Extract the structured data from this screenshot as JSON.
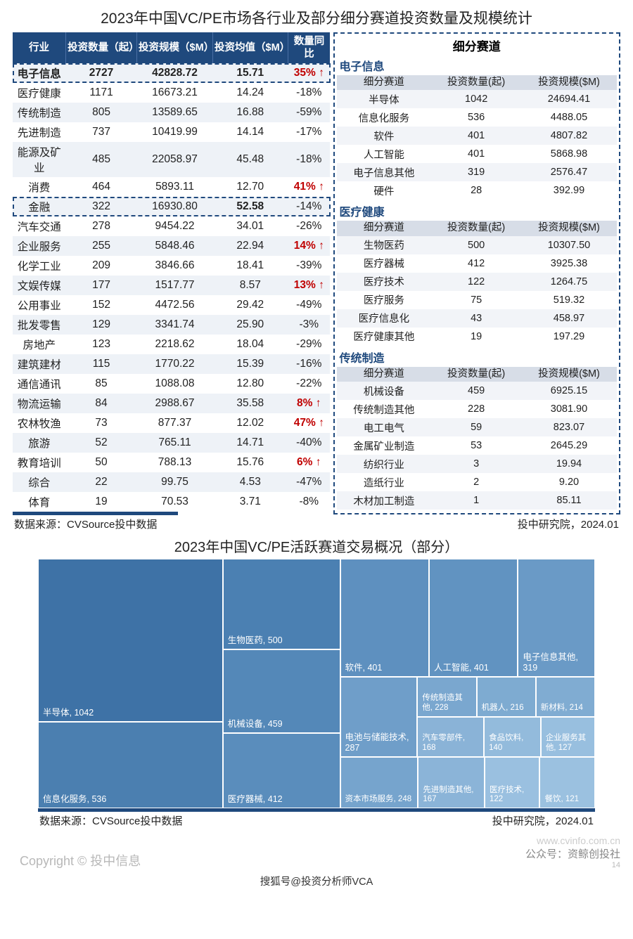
{
  "main_title": "2023年中国VC/PE市场各行业及部分细分赛道投资数量及规模统计",
  "industry_table": {
    "headers": [
      "行业",
      "投资数量（起）",
      "投资规模（$M）",
      "投资均值（$M）",
      "数量同比"
    ],
    "rows": [
      {
        "name": "电子信息",
        "count": "2727",
        "scale": "42828.72",
        "avg": "15.71",
        "yoy": "35%",
        "up": true,
        "bold": true,
        "dash": true
      },
      {
        "name": "医疗健康",
        "count": "1171",
        "scale": "16673.21",
        "avg": "14.24",
        "yoy": "-18%"
      },
      {
        "name": "传统制造",
        "count": "805",
        "scale": "13589.65",
        "avg": "16.88",
        "yoy": "-59%"
      },
      {
        "name": "先进制造",
        "count": "737",
        "scale": "10419.99",
        "avg": "14.14",
        "yoy": "-17%"
      },
      {
        "name": "能源及矿业",
        "count": "485",
        "scale": "22058.97",
        "avg": "45.48",
        "yoy": "-18%"
      },
      {
        "name": "消费",
        "count": "464",
        "scale": "5893.11",
        "avg": "12.70",
        "yoy": "41%",
        "up": true
      },
      {
        "name": "金融",
        "count": "322",
        "scale": "16930.80",
        "avg": "52.58",
        "yoy": "-14%",
        "bold_avg": true,
        "dash": true
      },
      {
        "name": "汽车交通",
        "count": "278",
        "scale": "9454.22",
        "avg": "34.01",
        "yoy": "-26%"
      },
      {
        "name": "企业服务",
        "count": "255",
        "scale": "5848.46",
        "avg": "22.94",
        "yoy": "14%",
        "up": true
      },
      {
        "name": "化学工业",
        "count": "209",
        "scale": "3846.66",
        "avg": "18.41",
        "yoy": "-39%"
      },
      {
        "name": "文娱传媒",
        "count": "177",
        "scale": "1517.77",
        "avg": "8.57",
        "yoy": "13%",
        "up": true
      },
      {
        "name": "公用事业",
        "count": "152",
        "scale": "4472.56",
        "avg": "29.42",
        "yoy": "-49%"
      },
      {
        "name": "批发零售",
        "count": "129",
        "scale": "3341.74",
        "avg": "25.90",
        "yoy": "-3%"
      },
      {
        "name": "房地产",
        "count": "123",
        "scale": "2218.62",
        "avg": "18.04",
        "yoy": "-29%"
      },
      {
        "name": "建筑建材",
        "count": "115",
        "scale": "1770.22",
        "avg": "15.39",
        "yoy": "-16%"
      },
      {
        "name": "通信通讯",
        "count": "85",
        "scale": "1088.08",
        "avg": "12.80",
        "yoy": "-22%"
      },
      {
        "name": "物流运输",
        "count": "84",
        "scale": "2988.67",
        "avg": "35.58",
        "yoy": "8%",
        "up": true
      },
      {
        "name": "农林牧渔",
        "count": "73",
        "scale": "877.37",
        "avg": "12.02",
        "yoy": "47%",
        "up": true
      },
      {
        "name": "旅游",
        "count": "52",
        "scale": "765.11",
        "avg": "14.71",
        "yoy": "-40%"
      },
      {
        "name": "教育培训",
        "count": "50",
        "scale": "788.13",
        "avg": "15.76",
        "yoy": "6%",
        "up": true
      },
      {
        "name": "综合",
        "count": "22",
        "scale": "99.75",
        "avg": "4.53",
        "yoy": "-47%"
      },
      {
        "name": "体育",
        "count": "19",
        "scale": "70.53",
        "avg": "3.71",
        "yoy": "-8%"
      }
    ]
  },
  "right_panel_title": "细分赛道",
  "sub_headers": [
    "细分赛道",
    "投资数量(起)",
    "投资规模($M)"
  ],
  "subsectors": [
    {
      "title": "电子信息",
      "rows": [
        {
          "n": "半导体",
          "c": "1042",
          "s": "24694.41"
        },
        {
          "n": "信息化服务",
          "c": "536",
          "s": "4488.05"
        },
        {
          "n": "软件",
          "c": "401",
          "s": "4807.82"
        },
        {
          "n": "人工智能",
          "c": "401",
          "s": "5868.98"
        },
        {
          "n": "电子信息其他",
          "c": "319",
          "s": "2576.47"
        },
        {
          "n": "硬件",
          "c": "28",
          "s": "392.99"
        }
      ]
    },
    {
      "title": "医疗健康",
      "rows": [
        {
          "n": "生物医药",
          "c": "500",
          "s": "10307.50"
        },
        {
          "n": "医疗器械",
          "c": "412",
          "s": "3925.38"
        },
        {
          "n": "医疗技术",
          "c": "122",
          "s": "1264.75"
        },
        {
          "n": "医疗服务",
          "c": "75",
          "s": "519.32"
        },
        {
          "n": "医疗信息化",
          "c": "43",
          "s": "458.97"
        },
        {
          "n": "医疗健康其他",
          "c": "19",
          "s": "197.29"
        }
      ]
    },
    {
      "title": "传统制造",
      "rows": [
        {
          "n": "机械设备",
          "c": "459",
          "s": "6925.15"
        },
        {
          "n": "传统制造其他",
          "c": "228",
          "s": "3081.90"
        },
        {
          "n": "电工电气",
          "c": "59",
          "s": "823.07"
        },
        {
          "n": "金属矿业制造",
          "c": "53",
          "s": "2645.29"
        },
        {
          "n": "纺织行业",
          "c": "3",
          "s": "19.94"
        },
        {
          "n": "造纸行业",
          "c": "2",
          "s": "9.20"
        },
        {
          "n": "木材加工制造",
          "c": "1",
          "s": "85.11"
        }
      ]
    }
  ],
  "source_left": "数据来源：CVSource投中数据",
  "source_right": "投中研究院，2024.01",
  "chart_title": "2023年中国VC/PE活跃赛道交易概况（部分）",
  "treemap": {
    "type": "treemap",
    "background": "#ffffff",
    "cells": [
      {
        "label": "半导体, 1042",
        "value": 1042,
        "color": "#3e72a6"
      },
      {
        "label": "信息化服务, 536",
        "value": 536,
        "color": "#4b7fb0"
      },
      {
        "label": "生物医药, 500",
        "value": 500,
        "color": "#4b80b2"
      },
      {
        "label": "机械设备, 459",
        "value": 459,
        "color": "#5488b8"
      },
      {
        "label": "医疗器械, 412",
        "value": 412,
        "color": "#5a8dbc"
      },
      {
        "label": "软件, 401",
        "value": 401,
        "color": "#5e90bf"
      },
      {
        "label": "人工智能, 401",
        "value": 401,
        "color": "#6193c1"
      },
      {
        "label": "电子信息其他, 319",
        "value": 319,
        "color": "#6a9ac6"
      },
      {
        "label": "电池与储能技术, 287",
        "value": 287,
        "color": "#6f9ec9"
      },
      {
        "label": "资本市场服务, 248",
        "value": 248,
        "color": "#76a4cd"
      },
      {
        "label": "传统制造其他, 228",
        "value": 228,
        "color": "#7aa7cf"
      },
      {
        "label": "机器人, 216",
        "value": 216,
        "color": "#7eabd1"
      },
      {
        "label": "新材料, 214",
        "value": 214,
        "color": "#80acd2"
      },
      {
        "label": "汽车零部件, 168",
        "value": 168,
        "color": "#8ab3d7"
      },
      {
        "label": "先进制造其他, 167",
        "value": 167,
        "color": "#8bb4d8"
      },
      {
        "label": "食品饮料, 140",
        "value": 140,
        "color": "#93bbdc"
      },
      {
        "label": "企业服务其他, 127",
        "value": 127,
        "color": "#98bfdf"
      },
      {
        "label": "医疗技术, 122",
        "value": 122,
        "color": "#9ac0e0"
      },
      {
        "label": "餐饮, 121",
        "value": 121,
        "color": "#9bc1e0"
      }
    ]
  },
  "copyright": "Copyright © 投中信息",
  "url_watermark": "www.cvinfo.com.cn",
  "wechat": "公众号：资鲸创投社",
  "bottom_credit": "搜狐号@投资分析师VCA",
  "page_num": "14"
}
